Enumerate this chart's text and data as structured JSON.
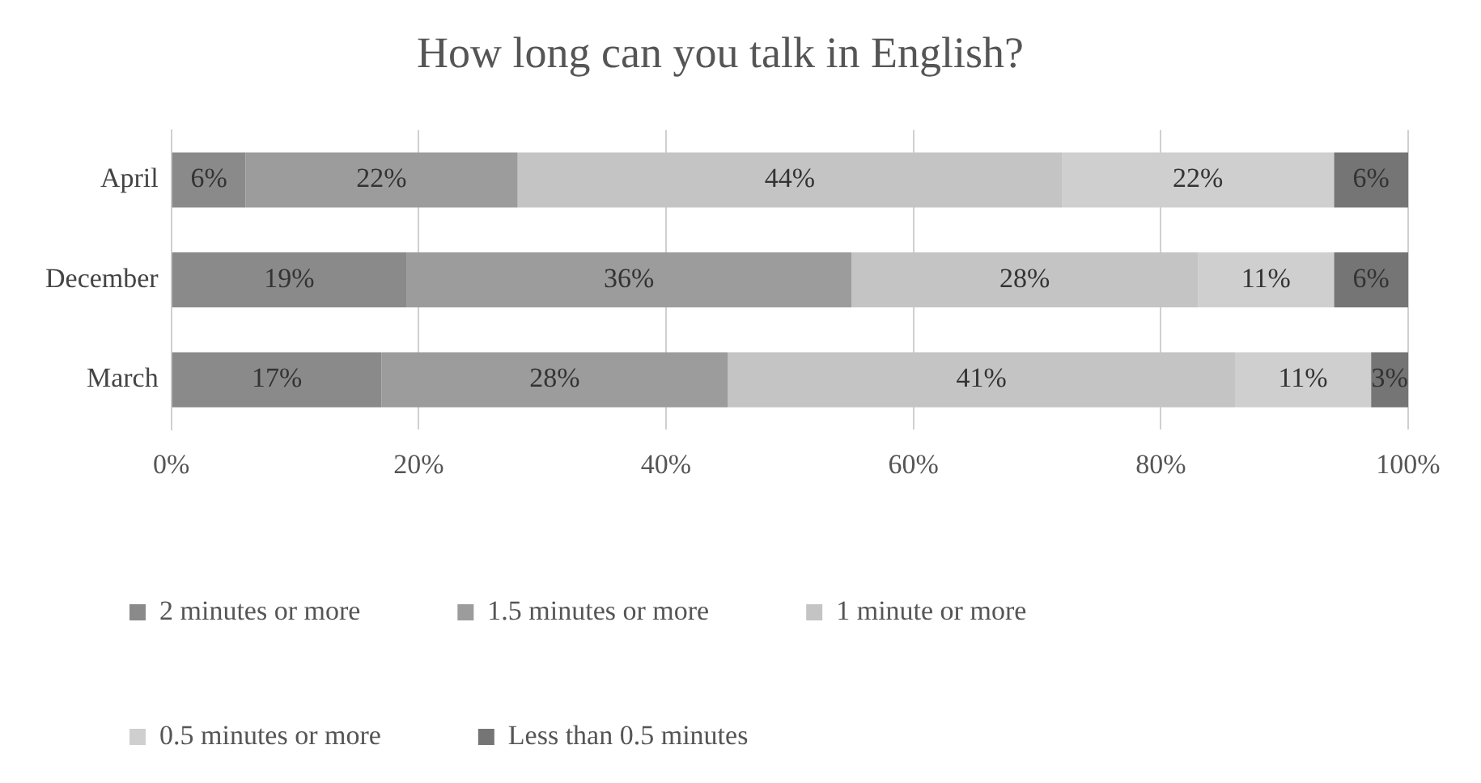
{
  "chart_data": {
    "type": "bar",
    "orientation": "horizontal",
    "stacked": true,
    "title": "How long can you talk in English?",
    "categories": [
      "April",
      "December",
      "March"
    ],
    "series": [
      {
        "name": "2 minutes or more",
        "color": "#8a8a8a",
        "values": [
          6,
          19,
          17
        ],
        "value_labels": [
          "6%",
          "19%",
          "17%"
        ]
      },
      {
        "name": "1.5 minutes or more",
        "color": "#9c9c9c",
        "values": [
          22,
          36,
          28
        ],
        "value_labels": [
          "22%",
          "36%",
          "28%"
        ]
      },
      {
        "name": "1 minute or more",
        "color": "#c4c4c4",
        "values": [
          44,
          28,
          41
        ],
        "value_labels": [
          "44%",
          "28%",
          "41%"
        ]
      },
      {
        "name": "0.5 minutes or more",
        "color": "#cfcfcf",
        "values": [
          22,
          11,
          11
        ],
        "value_labels": [
          "22%",
          "11%",
          "11%"
        ]
      },
      {
        "name": "Less than 0.5 minutes",
        "color": "#757575",
        "values": [
          6,
          6,
          3
        ],
        "value_labels": [
          "6%",
          "6%",
          "3%"
        ]
      }
    ],
    "xlim": [
      0,
      100
    ],
    "xticks": [
      {
        "value": 0,
        "label": "0%"
      },
      {
        "value": 20,
        "label": "20%"
      },
      {
        "value": 40,
        "label": "40%"
      },
      {
        "value": 60,
        "label": "60%"
      },
      {
        "value": 80,
        "label": "80%"
      },
      {
        "value": 100,
        "label": "100%"
      }
    ],
    "grid": "x",
    "legend": "bottom"
  }
}
